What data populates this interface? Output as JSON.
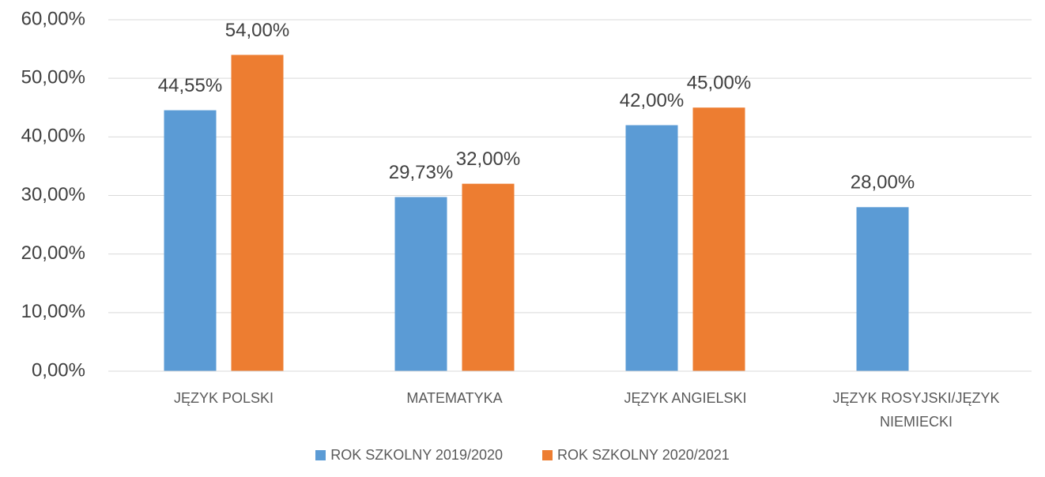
{
  "chart_data": {
    "type": "bar",
    "categories": [
      "JĘZYK POLSKI",
      "MATEMATYKA",
      "JĘZYK ANGIELSKI",
      "JĘZYK ROSYJSKI/JĘZYK NIEMIECKI"
    ],
    "series": [
      {
        "name": "ROK SZKOLNY 2019/2020",
        "color": "#5b9bd5",
        "values": [
          44.55,
          29.73,
          42,
          28
        ],
        "value_labels": [
          "44,55%",
          "29,73%",
          "42,00%",
          "28,00%"
        ]
      },
      {
        "name": "ROK SZKOLNY 2020/2021",
        "color": "#ed7d31",
        "values": [
          54,
          32,
          45,
          null
        ],
        "value_labels": [
          "54,00%",
          "32,00%",
          "45,00%",
          null
        ]
      }
    ],
    "ylim": [
      0,
      60
    ],
    "yticks": [
      {
        "value": 0,
        "label": "0,00%"
      },
      {
        "value": 10,
        "label": "10,00%"
      },
      {
        "value": 20,
        "label": "20,00%"
      },
      {
        "value": 30,
        "label": "30,00%"
      },
      {
        "value": 40,
        "label": "40,00%"
      },
      {
        "value": 50,
        "label": "50,00%"
      },
      {
        "value": 60,
        "label": "60,00%"
      }
    ],
    "grid": true,
    "legend": "bottom"
  }
}
